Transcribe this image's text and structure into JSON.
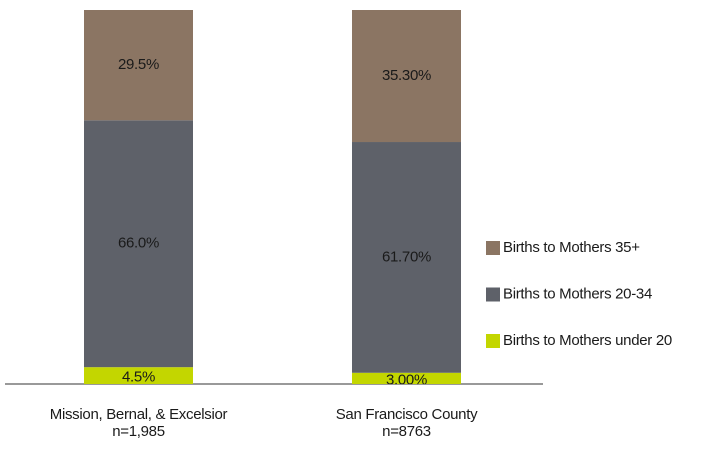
{
  "chart_data": {
    "type": "stacked_bar",
    "categories": [
      "Mission, Bernal, & Excelsior",
      "San Francisco County"
    ],
    "category_notes": [
      "n=1,985",
      "n=8763"
    ],
    "ylim": [
      0,
      100
    ],
    "series": [
      {
        "name": "Births to Mothers under 20",
        "color": "#c3d600",
        "values": [
          4.5,
          3.0
        ],
        "value_labels": [
          "4.5%",
          "3.00%"
        ]
      },
      {
        "name": "Births to Mothers 20-34",
        "color": "#5e6169",
        "values": [
          66.0,
          61.7
        ],
        "value_labels": [
          "66.0%",
          "61.70%"
        ]
      },
      {
        "name": "Births to Mothers 35+",
        "color": "#8b7563",
        "values": [
          29.5,
          35.3
        ],
        "value_labels": [
          "29.5%",
          "35.30%"
        ]
      }
    ]
  }
}
